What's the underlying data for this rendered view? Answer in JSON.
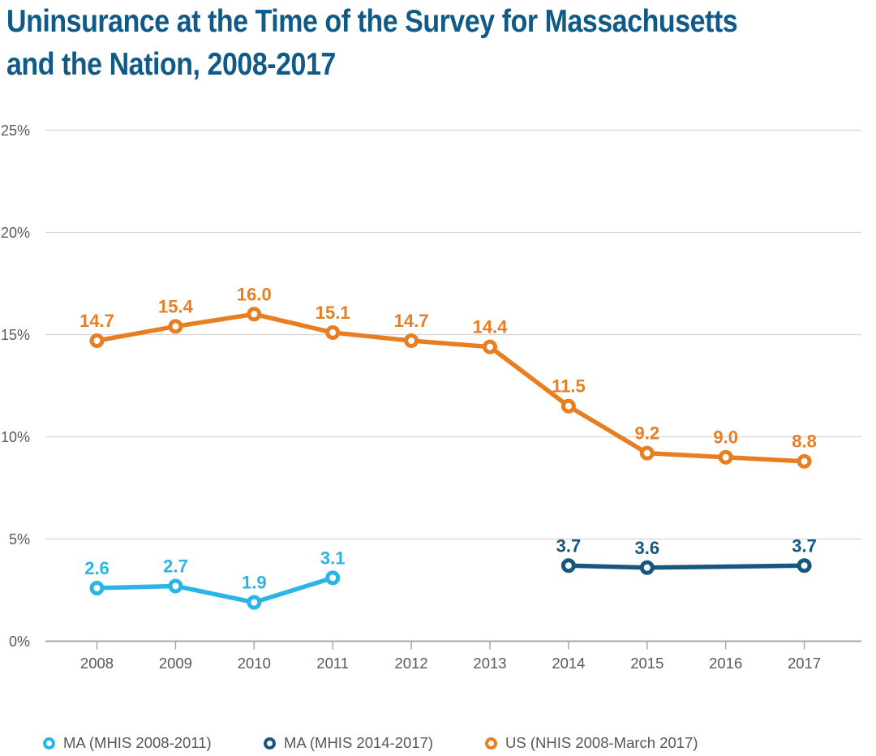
{
  "header": {
    "title_line1": "Uninsurance at the Time of the Survey for Massachusetts",
    "title_line2": "and the Nation, 2008-2017"
  },
  "colors": {
    "title": "#0F5A87",
    "axis_text": "#58595B",
    "legend_text": "#56575B",
    "gridline": "#D5D5D6",
    "axis_line": "#A8A8AA",
    "background": "#FFFFFF"
  },
  "chart_data": {
    "type": "line",
    "title": "Uninsurance at the Time of the Survey for Massachusetts and the Nation, 2008-2017",
    "xlabel": "",
    "ylabel": "",
    "ylim": [
      0,
      25
    ],
    "grid": true,
    "legend_position": "bottom",
    "x": [
      2008,
      2009,
      2010,
      2011,
      2012,
      2013,
      2014,
      2015,
      2016,
      2017
    ],
    "xtick_labels": [
      "2008",
      "2009",
      "2010",
      "2011",
      "2012",
      "2013",
      "2014",
      "2015",
      "2016",
      "2017"
    ],
    "yticks": [
      0,
      5,
      10,
      15,
      20,
      25
    ],
    "ytick_labels": [
      "0%",
      "5%",
      "10%",
      "15%",
      "20%",
      "25%"
    ],
    "series": [
      {
        "name": "MA (MHIS 2008-2011)",
        "color": "#2BB5E6",
        "points": [
          [
            2008,
            2.6
          ],
          [
            2009,
            2.7
          ],
          [
            2010,
            1.9
          ],
          [
            2011,
            3.1
          ]
        ]
      },
      {
        "name": "MA (MHIS 2014-2017)",
        "color": "#17577F",
        "points": [
          [
            2014,
            3.7
          ],
          [
            2015,
            3.6
          ],
          [
            2017,
            3.7
          ]
        ]
      },
      {
        "name": "US (NHIS 2008-March 2017)",
        "color": "#E87E22",
        "points": [
          [
            2008,
            14.7
          ],
          [
            2009,
            15.4
          ],
          [
            2010,
            16.0
          ],
          [
            2011,
            15.1
          ],
          [
            2012,
            14.7
          ],
          [
            2013,
            14.4
          ],
          [
            2014,
            11.5
          ],
          [
            2015,
            9.2
          ],
          [
            2016,
            9.0
          ],
          [
            2017,
            8.8
          ]
        ]
      }
    ]
  }
}
